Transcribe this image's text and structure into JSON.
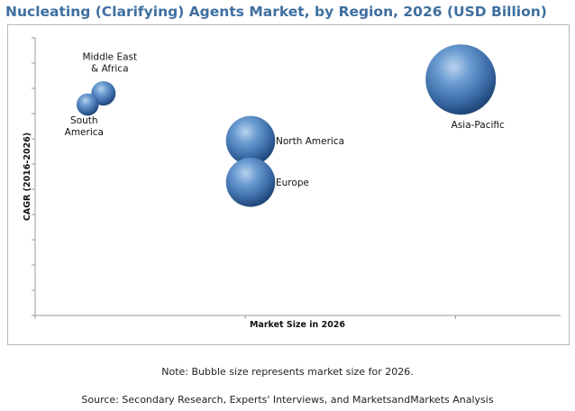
{
  "chart_data": {
    "type": "bubble",
    "title": "Nucleating (Clarifying) Agents Market, by Region, 2026 (USD Billion)",
    "xlabel": "Market Size in 2026",
    "ylabel": "CAGR (2016-2026)",
    "xlim": [
      0,
      100
    ],
    "ylim": [
      0,
      100
    ],
    "series": [
      {
        "name": "Asia-Pacific",
        "label_lines": [
          "Asia-Pacific"
        ],
        "x": 81,
        "y": 85,
        "size": 100
      },
      {
        "name": "North America",
        "label_lines": [
          "North America"
        ],
        "x": 41,
        "y": 63,
        "size": 49
      },
      {
        "name": "Europe",
        "label_lines": [
          "Europe"
        ],
        "x": 41,
        "y": 48,
        "size": 49
      },
      {
        "name": "Middle East & Africa",
        "label_lines": [
          "Middle East",
          "& Africa"
        ],
        "x": 13,
        "y": 80,
        "size": 12
      },
      {
        "name": "South America",
        "label_lines": [
          "South",
          "America"
        ],
        "x": 10,
        "y": 76,
        "size": 10
      }
    ]
  },
  "notes": {
    "bubble_note": "Note: Bubble size represents market size for 2026.",
    "source": "Source: Secondary Research, Experts' Interviews, and MarketsandMarkets Analysis"
  }
}
